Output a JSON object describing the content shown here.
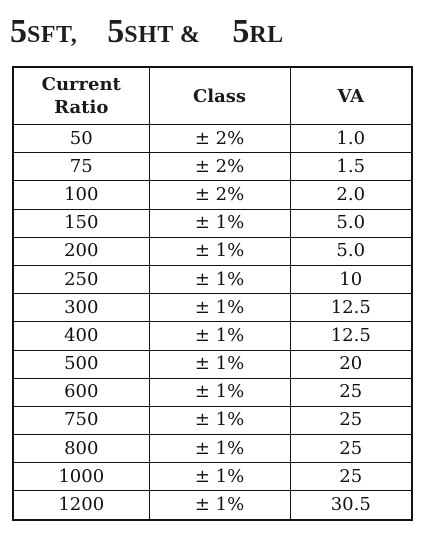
{
  "title": {
    "part1_num": "5",
    "part1_text": "SFT,",
    "part2_num": "5",
    "part2_text": "SHT &",
    "part3_num": "5",
    "part3_text": "RL"
  },
  "table": {
    "headers": {
      "current_ratio_line1": "Current",
      "current_ratio_line2": "Ratio",
      "class": "Class",
      "va": "VA"
    },
    "rows": [
      {
        "ratio": "50",
        "class": "± 2%",
        "va": "1.0"
      },
      {
        "ratio": "75",
        "class": "± 2%",
        "va": "1.5"
      },
      {
        "ratio": "100",
        "class": "± 2%",
        "va": "2.0"
      },
      {
        "ratio": "150",
        "class": "± 1%",
        "va": "5.0"
      },
      {
        "ratio": "200",
        "class": "± 1%",
        "va": "5.0"
      },
      {
        "ratio": "250",
        "class": "± 1%",
        "va": "10"
      },
      {
        "ratio": "300",
        "class": "± 1%",
        "va": "12.5"
      },
      {
        "ratio": "400",
        "class": "± 1%",
        "va": "12.5"
      },
      {
        "ratio": "500",
        "class": "± 1%",
        "va": "20"
      },
      {
        "ratio": "600",
        "class": "± 1%",
        "va": "25"
      },
      {
        "ratio": "750",
        "class": "± 1%",
        "va": "25"
      },
      {
        "ratio": "800",
        "class": "± 1%",
        "va": "25"
      },
      {
        "ratio": "1000",
        "class": "± 1%",
        "va": "25"
      },
      {
        "ratio": "1200",
        "class": "± 1%",
        "va": "30.5"
      }
    ]
  }
}
